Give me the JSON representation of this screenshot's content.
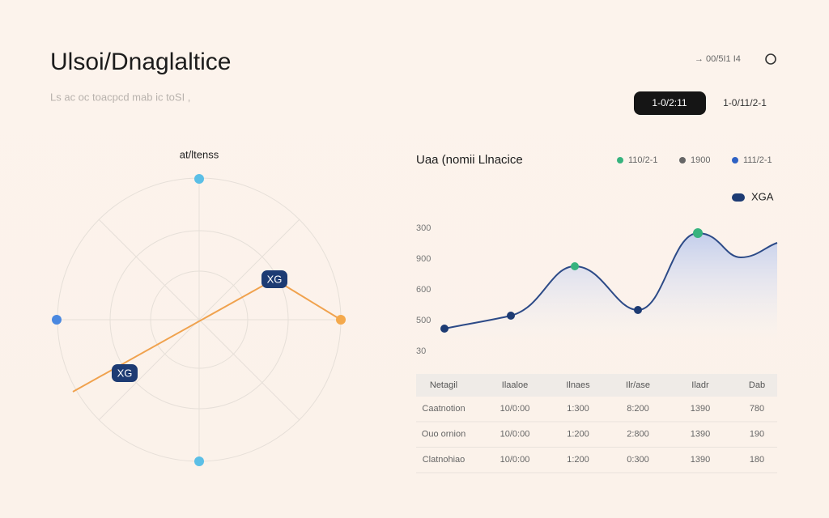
{
  "header": {
    "title": "Ulsoi/Dnaglaltice",
    "subtitle": "Ls ac oc toacpcd mab ic toSI ,",
    "status": "→ 00/5I1 I4"
  },
  "toggles": [
    "1-0/2:11",
    "1-0/11/2-1"
  ],
  "left_panel": {
    "title": "at/ltenss",
    "labels": [
      "XG",
      "XG"
    ]
  },
  "right_panel": {
    "title": "Uaa (nomii Llnacice",
    "legend": [
      "110/2-1",
      "1900",
      "111/2-1"
    ],
    "badge": "XGA",
    "axis_labels": [
      "300",
      "900",
      "600",
      "500",
      "30"
    ]
  },
  "table": {
    "header": [
      "Netagil",
      "Ilaaloe",
      "Ilnaes",
      "Ilr/ase",
      "Iladr",
      "Dab"
    ],
    "rows": [
      [
        "Caatnotion",
        "10/0:00",
        "1:300",
        "8:200",
        "1390",
        "780"
      ],
      [
        "Ouo ornion",
        "10/0:00",
        "1:200",
        "2:800",
        "1390",
        "190"
      ],
      [
        "Clatnohiao",
        "10/0:00",
        "1:200",
        "0:300",
        "1390",
        "180"
      ]
    ]
  }
}
